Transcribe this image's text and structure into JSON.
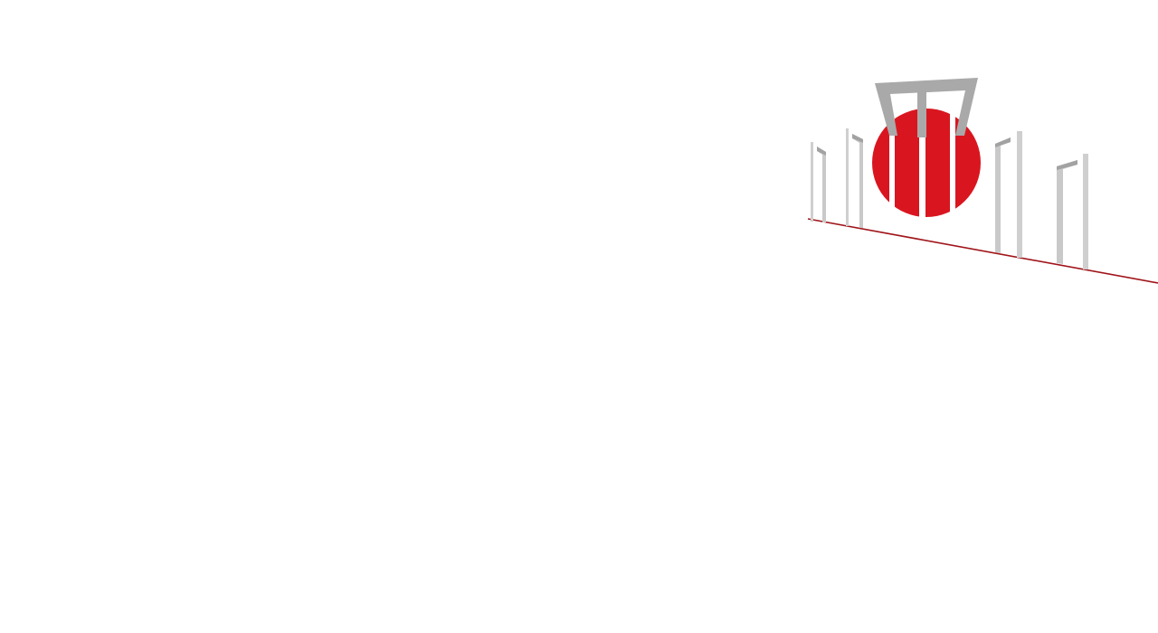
{
  "page": {
    "title": ""
  },
  "illustration": {
    "subject": "shaheed-minar-monument-graphic",
    "colors": {
      "sun": "#d9161f",
      "pillar_front": "#c9c9c9",
      "pillar_side": "#a2a2a2",
      "horizon_line": "#a0141a",
      "background": "#ffffff"
    }
  }
}
